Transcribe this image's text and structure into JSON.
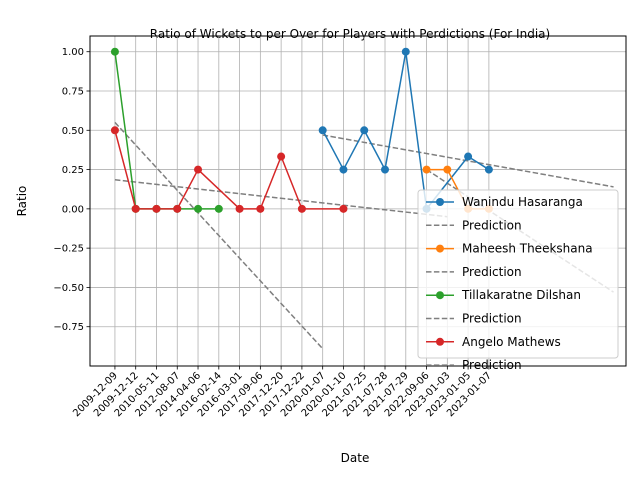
{
  "chart_data": {
    "type": "line",
    "title": "Ratio of Wickets to per Over for Players with Perdictions (For India)",
    "xlabel": "Date",
    "ylabel": "Ratio",
    "x_ticks": [
      "2009-12-09",
      "2009-12-12",
      "2010-05-11",
      "2012-08-07",
      "2014-04-06",
      "2016-02-14",
      "2016-03-01",
      "2017-09-06",
      "2017-12-20",
      "2017-12-22",
      "2020-01-07",
      "2020-01-10",
      "2021-07-25",
      "2021-07-28",
      "2021-07-29",
      "2022-09-06",
      "2023-01-03",
      "2023-01-05",
      "2023-01-07"
    ],
    "y_ticks": [
      "1.00",
      "0.75",
      "0.50",
      "0.25",
      "0.00",
      "−0.25",
      "−0.50",
      "−0.75"
    ],
    "y_tick_values": [
      1.0,
      0.75,
      0.5,
      0.25,
      0.0,
      -0.25,
      -0.5,
      -0.75
    ],
    "ylim": [
      -1.0,
      1.1
    ],
    "xlim": [
      -1.2,
      24.6
    ],
    "grid": true,
    "legend_position": "lower-right",
    "series": [
      {
        "name": "Wanindu Hasaranga",
        "color": "#1f77b4",
        "points": [
          [
            10,
            0.5
          ],
          [
            11,
            0.25
          ],
          [
            12,
            0.5
          ],
          [
            13,
            0.25
          ],
          [
            14,
            1.0
          ],
          [
            15,
            0.0
          ],
          [
            17,
            0.333
          ],
          [
            18,
            0.25
          ]
        ],
        "prediction_name": "Prediction",
        "prediction": [
          [
            10,
            0.47
          ],
          [
            24,
            0.14
          ]
        ]
      },
      {
        "name": "Maheesh Theekshana",
        "color": "#ff7f0e",
        "points": [
          [
            15,
            0.25
          ],
          [
            16,
            0.25
          ],
          [
            17,
            0.0
          ],
          [
            18,
            0.0
          ]
        ],
        "prediction_name": "Prediction",
        "prediction": [
          [
            15,
            0.25
          ],
          [
            24,
            -0.53
          ]
        ]
      },
      {
        "name": "Tillakaratne Dilshan",
        "color": "#2ca02c",
        "points": [
          [
            0,
            1.0
          ],
          [
            1,
            0.0
          ],
          [
            2,
            0.0
          ],
          [
            3,
            0.0
          ],
          [
            4,
            0.0
          ],
          [
            5,
            0.0
          ]
        ],
        "prediction_name": "Prediction",
        "prediction": [
          [
            0,
            0.55
          ],
          [
            10,
            -0.89
          ]
        ]
      },
      {
        "name": "Angelo Mathews",
        "color": "#d62728",
        "points": [
          [
            0,
            0.5
          ],
          [
            1,
            0.0
          ],
          [
            2,
            0.0
          ],
          [
            3,
            0.0
          ],
          [
            4,
            0.25
          ],
          [
            6,
            0.0
          ],
          [
            7,
            0.0
          ],
          [
            8,
            0.333
          ],
          [
            9,
            0.0
          ],
          [
            11,
            0.0
          ]
        ],
        "prediction_name": "Prediction",
        "prediction": [
          [
            0,
            0.185
          ],
          [
            16,
            -0.05
          ]
        ]
      }
    ]
  }
}
